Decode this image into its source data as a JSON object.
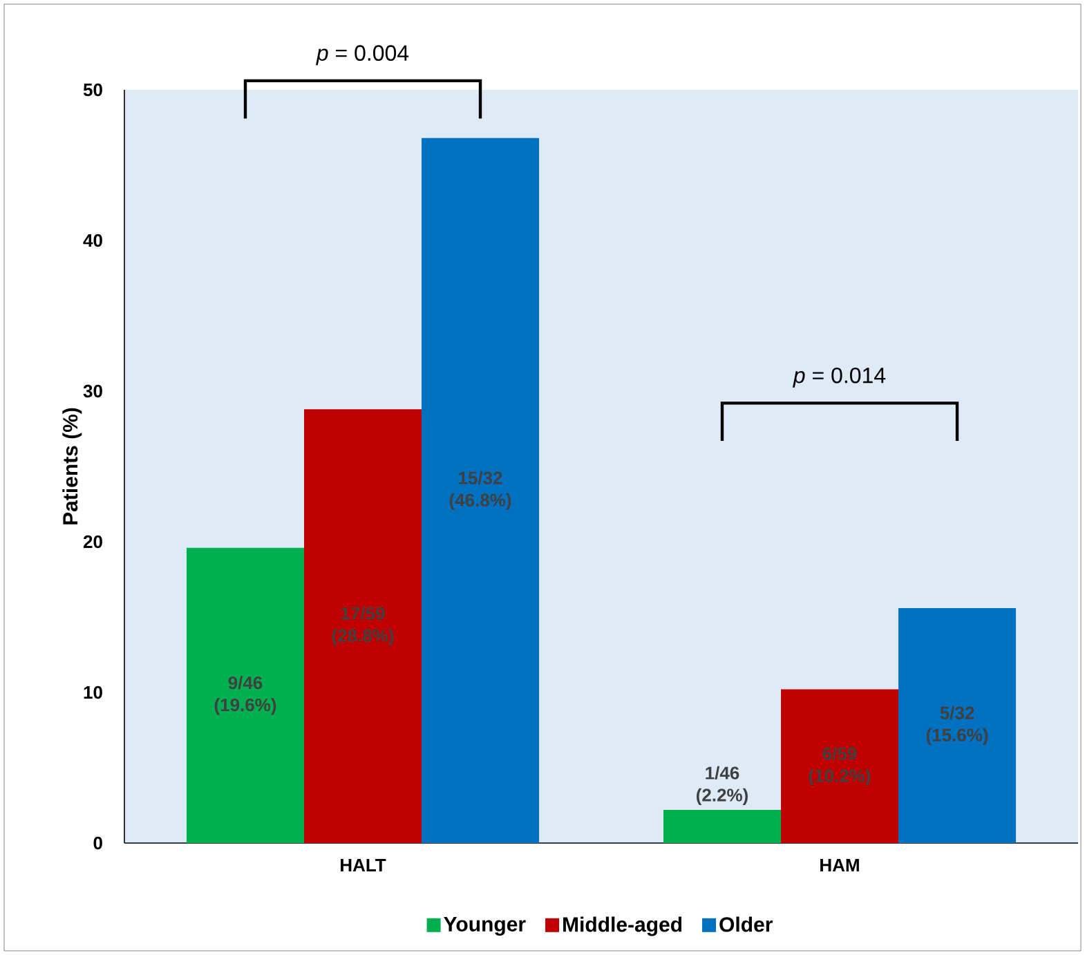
{
  "chart_data": {
    "type": "bar",
    "ylabel": "Patients (%)",
    "categories": [
      "HALT",
      "HAM"
    ],
    "series": [
      {
        "name": "Younger",
        "color": "#00b050",
        "values": [
          19.6,
          2.2
        ],
        "value_labels": [
          "9/46 (19.6%)",
          "1/46 (2.2%)"
        ]
      },
      {
        "name": "Middle-aged",
        "color": "#c00000",
        "values": [
          28.8,
          10.2
        ],
        "value_labels": [
          "17/59 (28.8%)",
          "6/59 (10.2%)"
        ]
      },
      {
        "name": "Older",
        "color": "#0070c0",
        "values": [
          46.8,
          15.6
        ],
        "value_labels": [
          "15/32 (46.8%)",
          "5/32 (15.6%)"
        ]
      }
    ],
    "ylim": [
      0,
      50
    ],
    "yticks": [
      0,
      10,
      20,
      30,
      40,
      50
    ],
    "legend": "bottom",
    "grid": false,
    "annotations": [
      "*p* = 0.004",
      "*p* = 0.014"
    ]
  }
}
